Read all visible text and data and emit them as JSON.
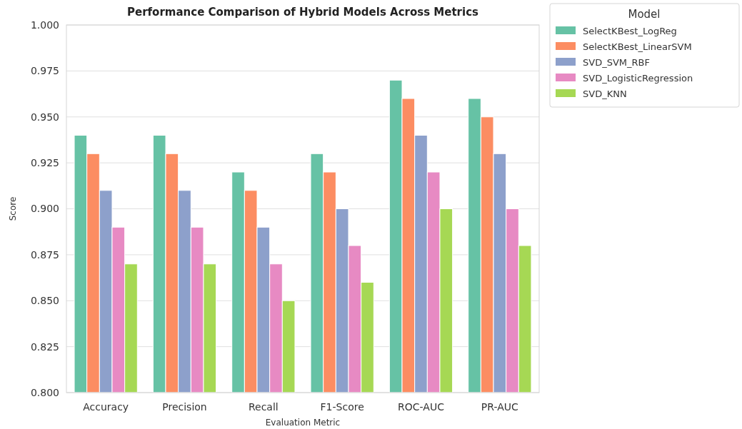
{
  "chart_data": {
    "type": "bar",
    "title": "Performance Comparison of Hybrid Models Across Metrics",
    "xlabel": "Evaluation Metric",
    "ylabel": "Score",
    "legend_title": "Model",
    "categories": [
      "Accuracy",
      "Precision",
      "Recall",
      "F1-Score",
      "ROC-AUC",
      "PR-AUC"
    ],
    "series": [
      {
        "name": "SelectKBest_LogReg",
        "color": "#66c2a5",
        "values": [
          0.94,
          0.94,
          0.92,
          0.93,
          0.97,
          0.96
        ]
      },
      {
        "name": "SelectKBest_LinearSVM",
        "color": "#fc8d62",
        "values": [
          0.93,
          0.93,
          0.91,
          0.92,
          0.96,
          0.95
        ]
      },
      {
        "name": "SVD_SVM_RBF",
        "color": "#8da0cb",
        "values": [
          0.91,
          0.91,
          0.89,
          0.9,
          0.94,
          0.93
        ]
      },
      {
        "name": "SVD_LogisticRegression",
        "color": "#e78ac3",
        "values": [
          0.89,
          0.89,
          0.87,
          0.88,
          0.92,
          0.9
        ]
      },
      {
        "name": "SVD_KNN",
        "color": "#a6d854",
        "values": [
          0.87,
          0.87,
          0.85,
          0.86,
          0.9,
          0.88
        ]
      }
    ],
    "ylim": [
      0.8,
      1.0
    ],
    "yticks": [
      {
        "value": 0.8,
        "label": "0.800"
      },
      {
        "value": 0.825,
        "label": "0.825"
      },
      {
        "value": 0.85,
        "label": "0.850"
      },
      {
        "value": 0.875,
        "label": "0.875"
      },
      {
        "value": 0.9,
        "label": "0.900"
      },
      {
        "value": 0.925,
        "label": "0.925"
      },
      {
        "value": 0.95,
        "label": "0.950"
      },
      {
        "value": 0.975,
        "label": "0.975"
      },
      {
        "value": 1.0,
        "label": "1.000"
      }
    ],
    "grid": "y",
    "legend": "right"
  }
}
